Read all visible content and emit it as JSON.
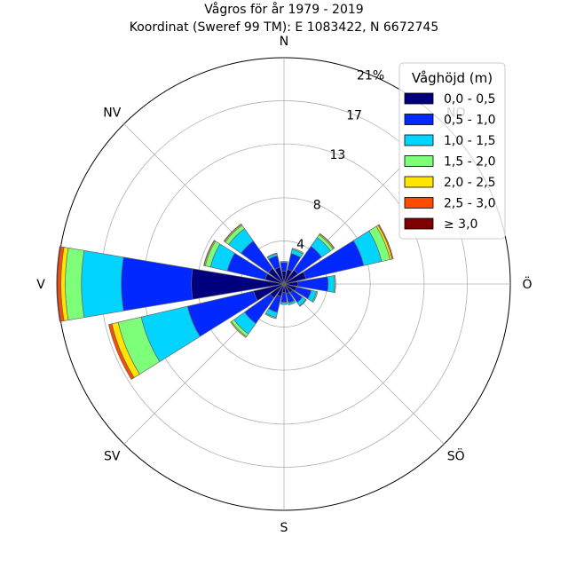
{
  "chart_data": {
    "type": "windrose",
    "title": "Vågros för år 1979 - 2019",
    "subtitle": "Koordinat (Sweref 99 TM): E 1083422, N 6672745",
    "directions": [
      "N",
      "NO",
      "Ö",
      "SÖ",
      "S",
      "SV",
      "V",
      "NV"
    ],
    "radial_ticks": [
      "4",
      "8",
      "13",
      "17",
      "21%"
    ],
    "rmax": 21,
    "legend": {
      "title": "Våghöjd (m)",
      "position": "top-right",
      "bins": [
        "0,0 - 0,5",
        "0,5 - 1,0",
        "1,0 - 1,5",
        "1,5 - 2,0",
        "2,0 - 2,5",
        "2,5 - 3,0",
        "≥ 3,0"
      ],
      "colors": [
        "#00007f",
        "#0028ff",
        "#00d4ff",
        "#7dff7a",
        "#ffe500",
        "#ff4a00",
        "#7f0000"
      ]
    },
    "sectors_deg": [
      0,
      22.5,
      45,
      67.5,
      90,
      112.5,
      135,
      157.5,
      180,
      202.5,
      225,
      247.5,
      270,
      292.5,
      315,
      337.5
    ],
    "values": [
      [
        1.2,
        0.8,
        0.1,
        0.0,
        0.0,
        0.0,
        0.0
      ],
      [
        1.4,
        1.5,
        0.4,
        0.1,
        0.0,
        0.0,
        0.0
      ],
      [
        1.6,
        2.7,
        1.0,
        0.3,
        0.1,
        0.05,
        0.0
      ],
      [
        2.1,
        5.5,
        1.7,
        0.8,
        0.2,
        0.1,
        0.0
      ],
      [
        1.3,
        2.8,
        0.6,
        0.1,
        0.0,
        0.0,
        0.0
      ],
      [
        1.2,
        1.4,
        0.5,
        0.1,
        0.0,
        0.0,
        0.0
      ],
      [
        1.0,
        1.1,
        0.4,
        0.05,
        0.0,
        0.0,
        0.0
      ],
      [
        0.9,
        0.9,
        0.2,
        0.0,
        0.0,
        0.0,
        0.0
      ],
      [
        0.8,
        0.9,
        0.2,
        0.0,
        0.0,
        0.0,
        0.0
      ],
      [
        1.2,
        1.5,
        0.5,
        0.1,
        0.0,
        0.0,
        0.0
      ],
      [
        1.6,
        2.9,
        1.2,
        0.3,
        0.1,
        0.0,
        0.0
      ],
      [
        2.9,
        6.3,
        4.4,
        2.2,
        0.6,
        0.3,
        0.0
      ],
      [
        8.6,
        6.5,
        3.7,
        1.5,
        0.4,
        0.3,
        0.1
      ],
      [
        1.8,
        3.6,
        1.6,
        0.5,
        0.1,
        0.05,
        0.0
      ],
      [
        1.8,
        3.1,
        1.4,
        0.4,
        0.1,
        0.05,
        0.0
      ],
      [
        1.6,
        1.1,
        0.2,
        0.05,
        0.0,
        0.0,
        0.0
      ]
    ]
  }
}
